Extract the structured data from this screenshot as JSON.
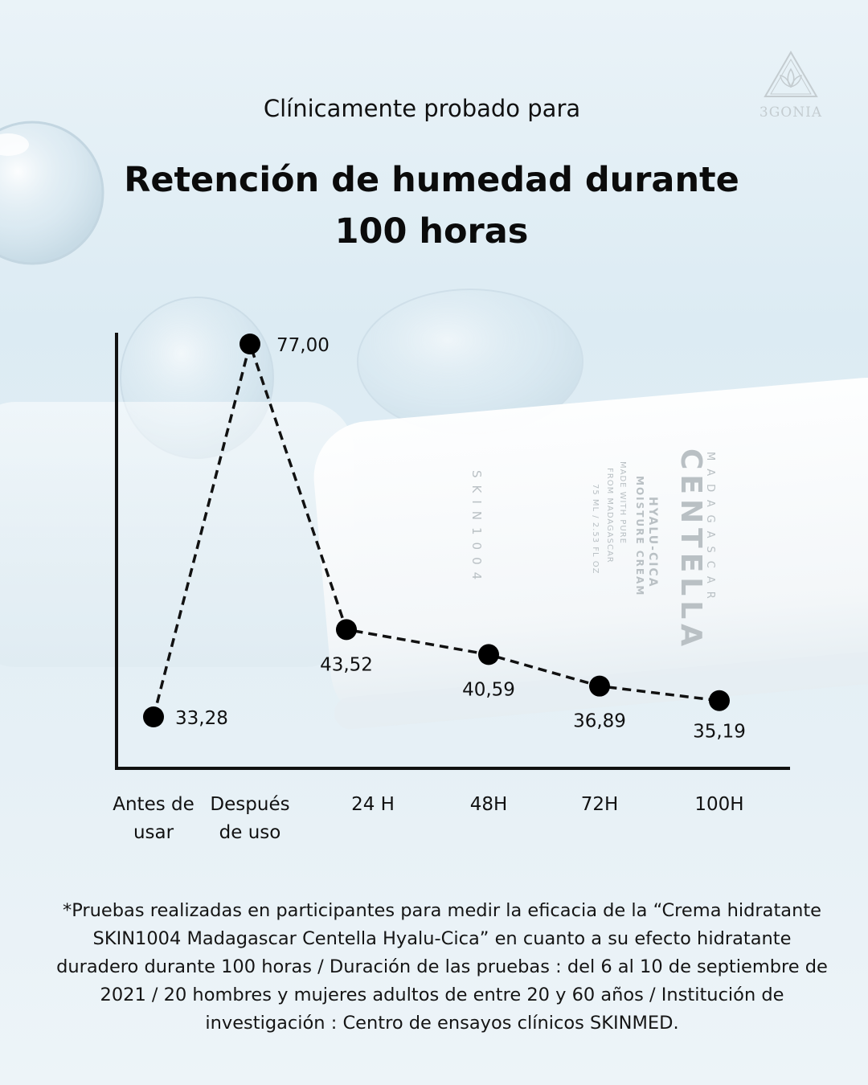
{
  "header": {
    "subtitle": "Clínicamente probado para",
    "title_line1": "Retención de humedad durante",
    "title_line2": "100 horas"
  },
  "logo": {
    "text": "3GONIA",
    "icon": "triangle-lotus-logo-icon"
  },
  "product_image": {
    "brand_lines": [
      "MADAGASCAR",
      "CENTELLA",
      "HYALU-CICA",
      "MOISTURE CREAM",
      "MADE WITH PURE",
      "FROM MADAGASCAR",
      "75 ML / 2.53 FL OZ",
      "SKIN1004"
    ]
  },
  "chart_data": {
    "type": "line",
    "categories": [
      "Antes de usar",
      "Después de uso",
      "24 H",
      "48H",
      "72H",
      "100H"
    ],
    "category_lines": [
      [
        "Antes de",
        "usar"
      ],
      [
        "Después",
        "de uso"
      ],
      [
        "24 H"
      ],
      [
        "48H"
      ],
      [
        "72H"
      ],
      [
        "100H"
      ]
    ],
    "values": [
      33.28,
      77.0,
      43.52,
      40.59,
      36.89,
      35.19
    ],
    "value_labels": [
      "33,28",
      "77,00",
      "43,52",
      "40,59",
      "36,89",
      "35,19"
    ],
    "title": "Retención de humedad durante 100 horas",
    "xlabel": "",
    "ylabel": "",
    "ylim": [
      27,
      80
    ],
    "grid": false,
    "line_style": "dashed",
    "colors": {
      "line": "#111111",
      "marker": "#000000",
      "axis": "#111111"
    }
  },
  "footnote": "*Pruebas realizadas en participantes para medir la eficacia de la “Crema hidratante SKIN1004 Madagascar Centella Hyalu-Cica” en cuanto a su efecto hidratante duradero durante 100 horas / Duración de las pruebas : del 6 al 10 de septiembre de 2021 / 20 hombres y mujeres adultos de entre 20 y 60 años / Institución de investigación : Centro de ensayos clínicos SKINMED."
}
